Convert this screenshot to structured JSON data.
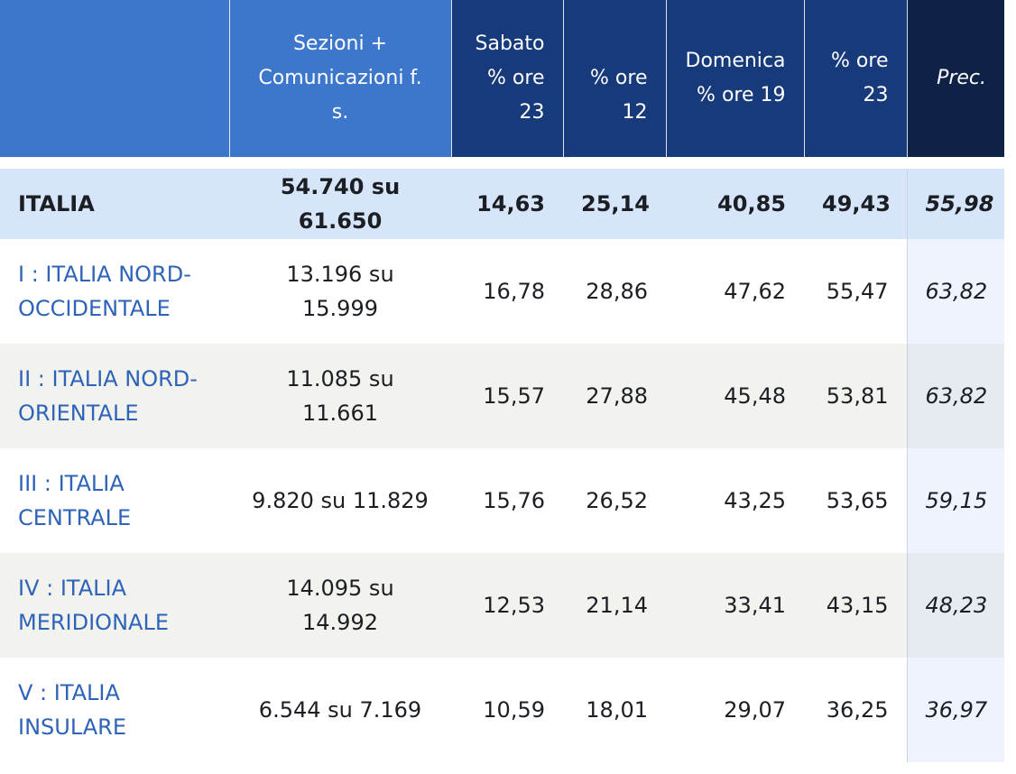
{
  "header": {
    "sezioni_line1": "Sezioni +",
    "sezioni_line2": "Comunicazioni f.",
    "sezioni_line3": "s.",
    "sabato_line1": "Sabato",
    "sabato_line2": "% ore",
    "sabato_line3": "23",
    "dom12_line1": "% ore",
    "dom12_line2": "12",
    "domenica_line1": "Domenica",
    "domenica_line2": "% ore 19",
    "dom23_line1": "% ore",
    "dom23_line2": "23",
    "prec": "Prec."
  },
  "total": {
    "area": "ITALIA",
    "sezioni": "54.740 su 61.650",
    "sab23": "14,63",
    "dom12": "25,14",
    "dom19": "40,85",
    "dom23": "49,43",
    "prec": "55,98"
  },
  "rows": [
    {
      "area_line1": "I : ITALIA NORD-",
      "area_line2": "OCCIDENTALE",
      "sezioni": "13.196 su 15.999",
      "sab23": "16,78",
      "dom12": "28,86",
      "dom19": "47,62",
      "dom23": "55,47",
      "prec": "63,82"
    },
    {
      "area_line1": "II : ITALIA NORD-",
      "area_line2": "ORIENTALE",
      "sezioni": "11.085 su 11.661",
      "sab23": "15,57",
      "dom12": "27,88",
      "dom19": "45,48",
      "dom23": "53,81",
      "prec": "63,82"
    },
    {
      "area_line1": "III : ITALIA",
      "area_line2": "CENTRALE",
      "sezioni": "9.820 su 11.829",
      "sab23": "15,76",
      "dom12": "26,52",
      "dom19": "43,25",
      "dom23": "53,65",
      "prec": "59,15"
    },
    {
      "area_line1": "IV : ITALIA",
      "area_line2": "MERIDIONALE",
      "sezioni": "14.095 su 14.992",
      "sab23": "12,53",
      "dom12": "21,14",
      "dom19": "33,41",
      "dom23": "43,15",
      "prec": "48,23"
    },
    {
      "area_line1": "V : ITALIA",
      "area_line2": "INSULARE",
      "sezioni": "6.544 su 7.169",
      "sab23": "10,59",
      "dom12": "18,01",
      "dom19": "29,07",
      "dom23": "36,25",
      "prec": "36,97"
    }
  ],
  "colors": {
    "header_light": "#3c77cc",
    "header_dark": "#163a7a",
    "header_prec": "#0d2246",
    "total_row": "#d7e5fb",
    "region_link": "#2e63b7",
    "stripe": "#f2f3ef"
  }
}
